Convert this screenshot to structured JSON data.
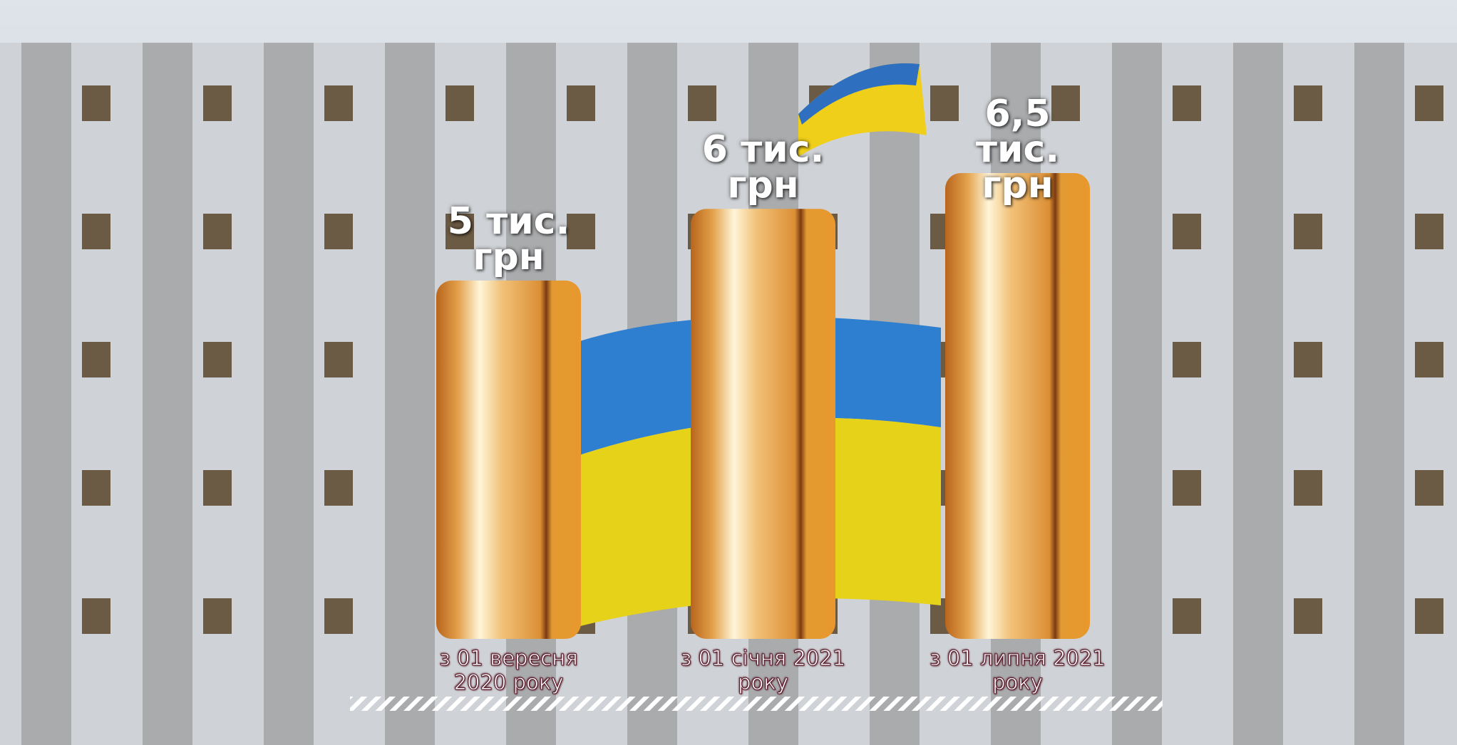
{
  "chart_data": {
    "type": "bar",
    "categories": [
      "з 01 вересня 2020 року",
      "з 01 січня 2021 року",
      "з 01 липня 2021 року"
    ],
    "values": [
      5,
      6,
      6.5
    ],
    "value_labels": [
      "5 тис. грн",
      "6 тис. грн",
      "6,5 тис. грн"
    ]
  }
}
